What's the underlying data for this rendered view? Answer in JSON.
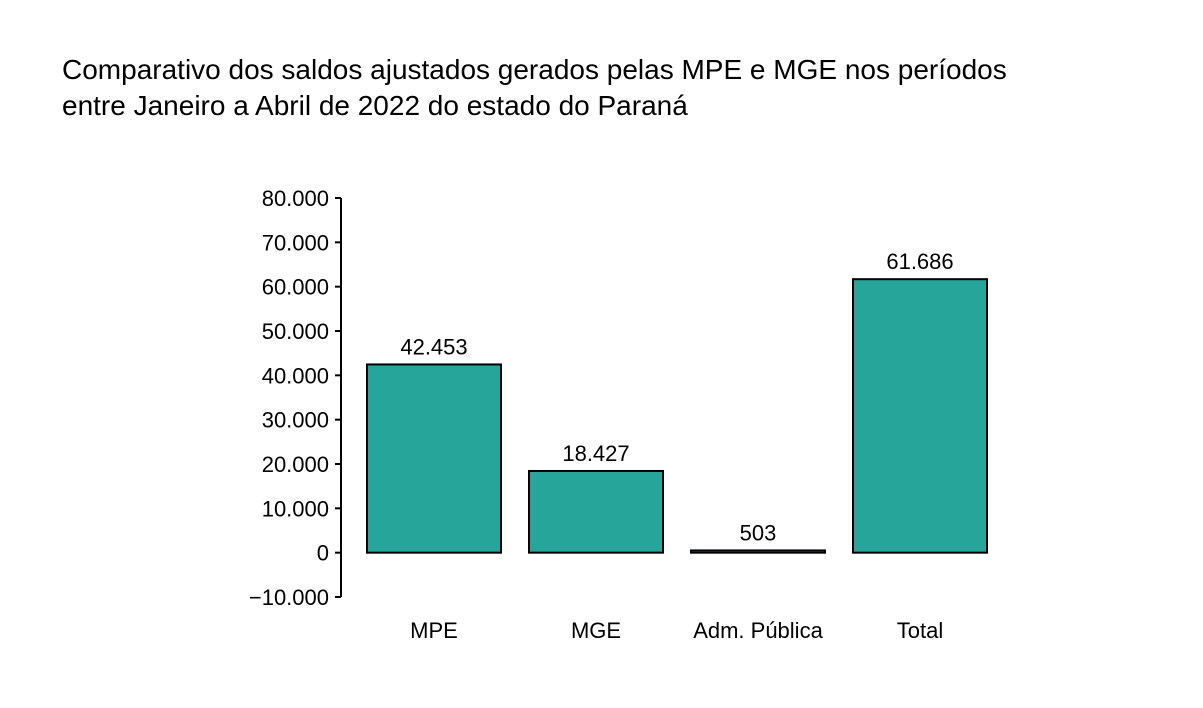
{
  "chart_data": {
    "type": "bar",
    "title": "Comparativo dos saldos ajustados gerados pelas MPE e MGE nos períodos\n   entre Janeiro a Abril de 2022 do estado do Paraná",
    "xlabel": "",
    "ylabel": "",
    "categories": [
      "MPE",
      "MGE",
      "Adm. Pública",
      "Total"
    ],
    "values": [
      42453,
      18427,
      503,
      61686
    ],
    "value_labels": [
      "42.453",
      "18.427",
      "503",
      "61.686"
    ],
    "ylim": [
      -10000,
      80000
    ],
    "y_ticks": [
      -10000,
      0,
      10000,
      20000,
      30000,
      40000,
      50000,
      60000,
      70000,
      80000
    ],
    "y_tick_labels": [
      "−10.000",
      "0",
      "10.000",
      "20.000",
      "30.000",
      "40.000",
      "50.000",
      "60.000",
      "70.000",
      "80.000"
    ],
    "grid": false,
    "legend": "none",
    "bar_color": "#26a69a",
    "edge_color": "#000000"
  }
}
